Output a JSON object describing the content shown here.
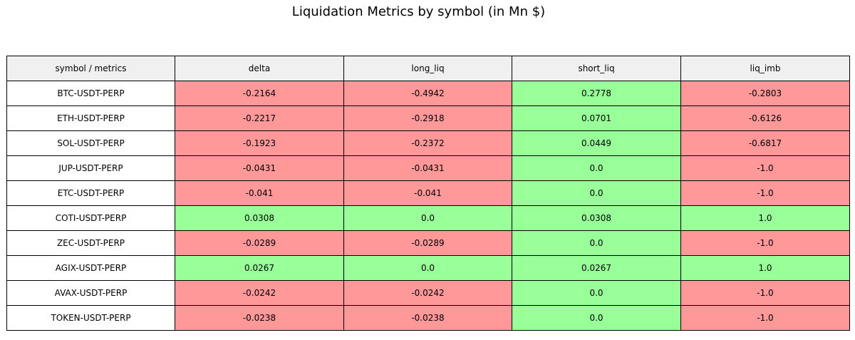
{
  "title": "Liquidation Metrics by symbol (in Mn $)",
  "colors": {
    "header_bg": "#f0f0f0",
    "negative": "#ff9999",
    "positive": "#99ff99",
    "label_bg": "#ffffff"
  },
  "chart_data": {
    "type": "table",
    "title": "Liquidation Metrics by symbol (in Mn $)",
    "columns": [
      "symbol / metrics",
      "delta",
      "long_liq",
      "short_liq",
      "liq_imb"
    ],
    "rows": [
      {
        "symbol": "BTC-USDT-PERP",
        "values": [
          "-0.2164",
          "-0.4942",
          "0.2778",
          "-0.2803"
        ]
      },
      {
        "symbol": "ETH-USDT-PERP",
        "values": [
          "-0.2217",
          "-0.2918",
          "0.0701",
          "-0.6126"
        ]
      },
      {
        "symbol": "SOL-USDT-PERP",
        "values": [
          "-0.1923",
          "-0.2372",
          "0.0449",
          "-0.6817"
        ]
      },
      {
        "symbol": "JUP-USDT-PERP",
        "values": [
          "-0.0431",
          "-0.0431",
          "0.0",
          "-1.0"
        ]
      },
      {
        "symbol": "ETC-USDT-PERP",
        "values": [
          "-0.041",
          "-0.041",
          "0.0",
          "-1.0"
        ]
      },
      {
        "symbol": "COTI-USDT-PERP",
        "values": [
          "0.0308",
          "0.0",
          "0.0308",
          "1.0"
        ]
      },
      {
        "symbol": "ZEC-USDT-PERP",
        "values": [
          "-0.0289",
          "-0.0289",
          "0.0",
          "-1.0"
        ]
      },
      {
        "symbol": "AGIX-USDT-PERP",
        "values": [
          "0.0267",
          "0.0",
          "0.0267",
          "1.0"
        ]
      },
      {
        "symbol": "AVAX-USDT-PERP",
        "values": [
          "-0.0242",
          "-0.0242",
          "0.0",
          "-1.0"
        ]
      },
      {
        "symbol": "TOKEN-USDT-PERP",
        "values": [
          "-0.0238",
          "-0.0238",
          "0.0",
          "-1.0"
        ]
      }
    ]
  }
}
